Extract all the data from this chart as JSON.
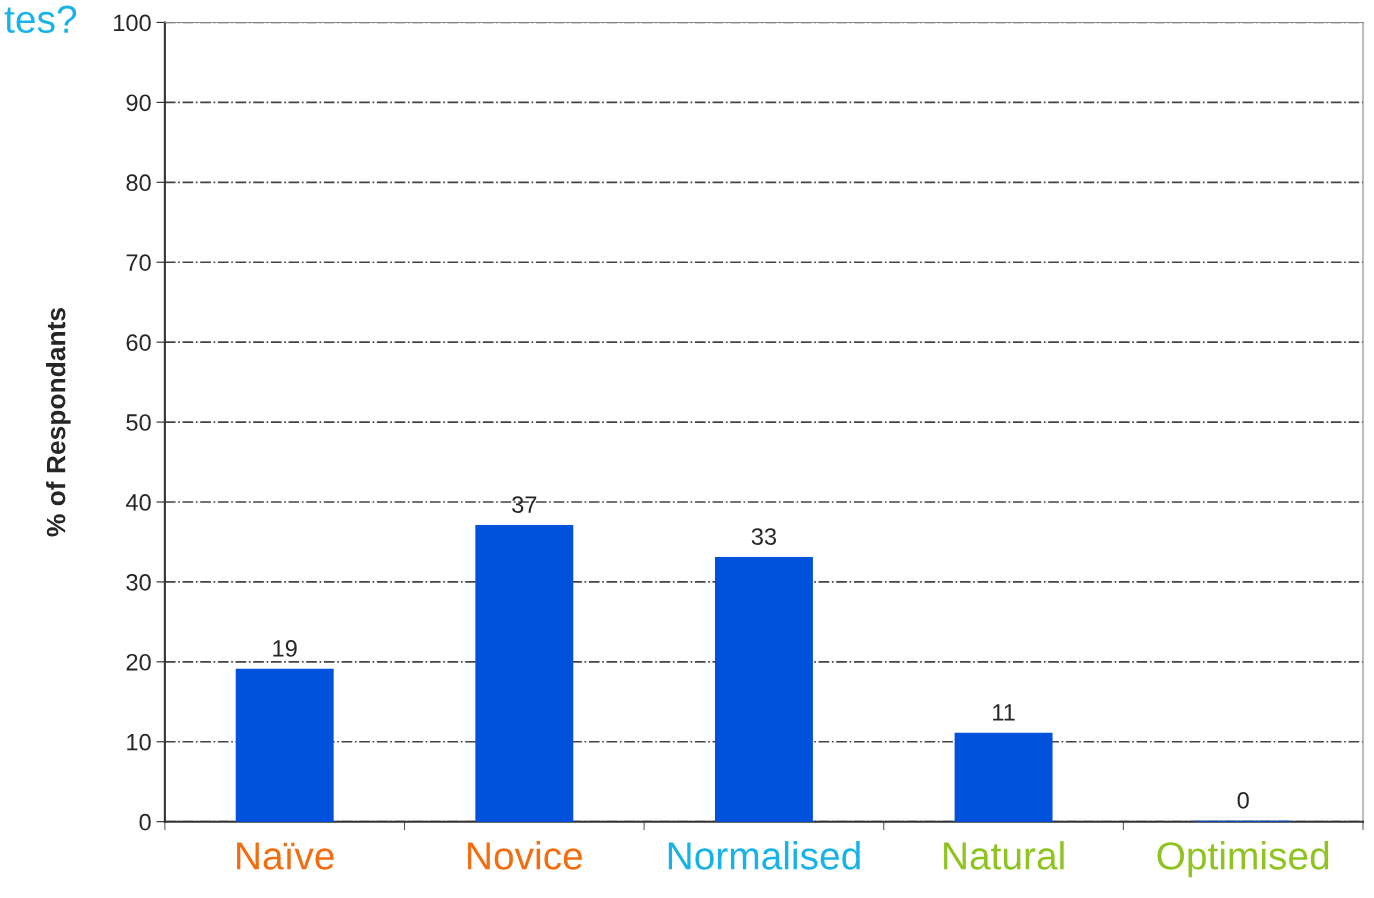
{
  "chart_data": {
    "type": "bar",
    "title": "tes?",
    "ylabel": "% of Respondants",
    "categories": [
      "Naïve",
      "Novice",
      "Normalised",
      "Natural",
      "Optimised"
    ],
    "values": [
      19,
      37,
      33,
      11,
      0
    ],
    "color": "#0052dc",
    "ylim": [
      0,
      100
    ],
    "yticks": [
      0,
      10,
      20,
      30,
      40,
      50,
      60,
      70,
      80,
      90,
      100
    ],
    "grid": "y",
    "data_labels": true
  }
}
